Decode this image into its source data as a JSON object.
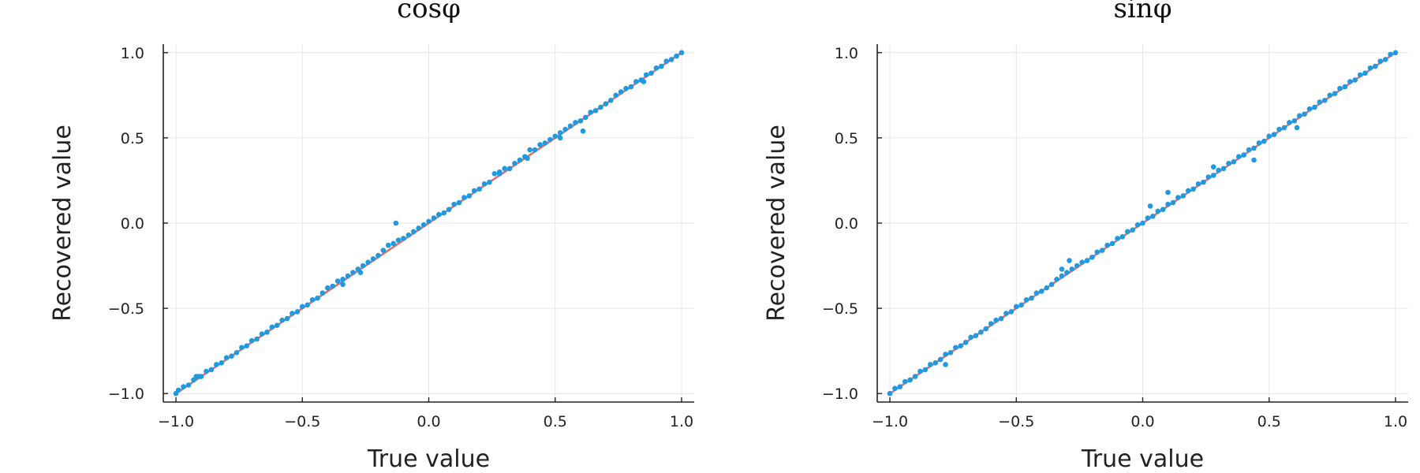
{
  "chart_data": [
    {
      "type": "scatter",
      "title": "cosφ",
      "xlabel": "True value",
      "ylabel": "Recovered value",
      "xlim": [
        -1.05,
        1.05
      ],
      "ylim": [
        -1.05,
        1.05
      ],
      "xticks": [
        -1.0,
        -0.5,
        0.0,
        0.5,
        1.0
      ],
      "yticks": [
        -1.0,
        -0.5,
        0.0,
        0.5,
        1.0
      ],
      "xtick_labels": [
        "−1.0",
        "−0.5",
        "0.0",
        "0.5",
        "1.0"
      ],
      "ytick_labels": [
        "−1.0",
        "−0.5",
        "0.0",
        "0.5",
        "1.0"
      ],
      "grid": true,
      "legend": "none",
      "colors": {
        "points": "#1f9ae0",
        "reference_line": "#e26f6f"
      },
      "reference_line": {
        "x": [
          -1.0,
          1.0
        ],
        "y": [
          -1.0,
          1.0
        ]
      },
      "series": [
        {
          "x": [
            -1.0,
            -0.99,
            -0.97,
            -0.95,
            -0.93,
            -0.91,
            -0.9,
            -0.88,
            -0.86,
            -0.84,
            -0.82,
            -0.8,
            -0.78,
            -0.76,
            -0.74,
            -0.72,
            -0.7,
            -0.68,
            -0.66,
            -0.64,
            -0.62,
            -0.6,
            -0.58,
            -0.56,
            -0.54,
            -0.52,
            -0.5,
            -0.48,
            -0.46,
            -0.44,
            -0.42,
            -0.4,
            -0.38,
            -0.36,
            -0.34,
            -0.32,
            -0.3,
            -0.28,
            -0.26,
            -0.24,
            -0.22,
            -0.2,
            -0.18,
            -0.16,
            -0.14,
            -0.13,
            -0.12,
            -0.1,
            -0.08,
            -0.06,
            -0.04,
            -0.02,
            0.0,
            0.02,
            0.04,
            0.06,
            0.08,
            0.1,
            0.12,
            0.14,
            0.16,
            0.18,
            0.2,
            0.22,
            0.24,
            0.26,
            0.28,
            0.3,
            0.32,
            0.34,
            0.36,
            0.38,
            0.4,
            0.42,
            0.44,
            0.46,
            0.48,
            0.5,
            0.52,
            0.54,
            0.56,
            0.58,
            0.6,
            0.62,
            0.64,
            0.66,
            0.68,
            0.7,
            0.72,
            0.74,
            0.76,
            0.78,
            0.8,
            0.82,
            0.84,
            0.86,
            0.88,
            0.9,
            0.92,
            0.94,
            0.96,
            0.98,
            1.0,
            -0.34,
            -0.27,
            0.61,
            0.28,
            0.39,
            0.52,
            -0.92,
            0.85
          ],
          "y": [
            -1.0,
            -0.98,
            -0.96,
            -0.95,
            -0.92,
            -0.9,
            -0.9,
            -0.87,
            -0.86,
            -0.83,
            -0.82,
            -0.79,
            -0.78,
            -0.76,
            -0.73,
            -0.72,
            -0.69,
            -0.68,
            -0.65,
            -0.64,
            -0.61,
            -0.6,
            -0.57,
            -0.56,
            -0.53,
            -0.52,
            -0.49,
            -0.48,
            -0.45,
            -0.44,
            -0.41,
            -0.38,
            -0.37,
            -0.34,
            -0.33,
            -0.31,
            -0.29,
            -0.27,
            -0.25,
            -0.23,
            -0.21,
            -0.19,
            -0.16,
            -0.13,
            -0.12,
            0.0,
            -0.1,
            -0.09,
            -0.07,
            -0.05,
            -0.03,
            -0.01,
            0.01,
            0.03,
            0.05,
            0.06,
            0.08,
            0.11,
            0.12,
            0.15,
            0.16,
            0.19,
            0.2,
            0.23,
            0.24,
            0.29,
            0.29,
            0.32,
            0.32,
            0.35,
            0.37,
            0.39,
            0.43,
            0.43,
            0.46,
            0.47,
            0.49,
            0.51,
            0.53,
            0.55,
            0.57,
            0.59,
            0.6,
            0.62,
            0.65,
            0.66,
            0.68,
            0.7,
            0.72,
            0.75,
            0.77,
            0.79,
            0.8,
            0.83,
            0.84,
            0.87,
            0.88,
            0.91,
            0.92,
            0.95,
            0.96,
            0.98,
            1.0,
            -0.36,
            -0.29,
            0.54,
            0.3,
            0.38,
            0.5,
            -0.9,
            0.83
          ]
        }
      ]
    },
    {
      "type": "scatter",
      "title": "sinφ",
      "xlabel": "True value",
      "ylabel": "Recovered value",
      "xlim": [
        -1.05,
        1.05
      ],
      "ylim": [
        -1.05,
        1.05
      ],
      "xticks": [
        -1.0,
        -0.5,
        0.0,
        0.5,
        1.0
      ],
      "yticks": [
        -1.0,
        -0.5,
        0.0,
        0.5,
        1.0
      ],
      "xtick_labels": [
        "−1.0",
        "−0.5",
        "0.0",
        "0.5",
        "1.0"
      ],
      "ytick_labels": [
        "−1.0",
        "−0.5",
        "0.0",
        "0.5",
        "1.0"
      ],
      "grid": true,
      "legend": "none",
      "colors": {
        "points": "#1f9ae0",
        "reference_line": "#e26f6f"
      },
      "reference_line": {
        "x": [
          -1.0,
          1.0
        ],
        "y": [
          -1.0,
          1.0
        ]
      },
      "series": [
        {
          "x": [
            -1.0,
            -0.98,
            -0.96,
            -0.94,
            -0.92,
            -0.9,
            -0.88,
            -0.86,
            -0.84,
            -0.82,
            -0.8,
            -0.78,
            -0.76,
            -0.74,
            -0.72,
            -0.7,
            -0.68,
            -0.66,
            -0.64,
            -0.62,
            -0.6,
            -0.58,
            -0.56,
            -0.54,
            -0.52,
            -0.5,
            -0.48,
            -0.46,
            -0.44,
            -0.42,
            -0.4,
            -0.38,
            -0.36,
            -0.34,
            -0.32,
            -0.3,
            -0.28,
            -0.26,
            -0.24,
            -0.22,
            -0.2,
            -0.18,
            -0.16,
            -0.14,
            -0.12,
            -0.1,
            -0.08,
            -0.06,
            -0.04,
            -0.02,
            0.0,
            0.02,
            0.04,
            0.06,
            0.08,
            0.1,
            0.12,
            0.14,
            0.16,
            0.18,
            0.2,
            0.22,
            0.24,
            0.26,
            0.28,
            0.3,
            0.32,
            0.34,
            0.36,
            0.38,
            0.4,
            0.42,
            0.44,
            0.46,
            0.48,
            0.5,
            0.52,
            0.54,
            0.56,
            0.58,
            0.6,
            0.62,
            0.64,
            0.66,
            0.68,
            0.7,
            0.72,
            0.74,
            0.76,
            0.78,
            0.8,
            0.82,
            0.84,
            0.86,
            0.88,
            0.9,
            0.92,
            0.94,
            0.96,
            0.98,
            1.0,
            -0.32,
            -0.29,
            0.1,
            0.03,
            0.61,
            0.44,
            0.28,
            -0.78
          ],
          "y": [
            -1.0,
            -0.97,
            -0.96,
            -0.93,
            -0.92,
            -0.9,
            -0.87,
            -0.86,
            -0.83,
            -0.82,
            -0.8,
            -0.77,
            -0.76,
            -0.73,
            -0.72,
            -0.7,
            -0.67,
            -0.66,
            -0.64,
            -0.62,
            -0.59,
            -0.57,
            -0.56,
            -0.53,
            -0.52,
            -0.49,
            -0.48,
            -0.45,
            -0.44,
            -0.41,
            -0.4,
            -0.38,
            -0.36,
            -0.33,
            -0.31,
            -0.29,
            -0.27,
            -0.25,
            -0.23,
            -0.22,
            -0.2,
            -0.17,
            -0.16,
            -0.13,
            -0.12,
            -0.09,
            -0.08,
            -0.05,
            -0.04,
            -0.01,
            0.0,
            0.03,
            0.04,
            0.07,
            0.08,
            0.11,
            0.12,
            0.15,
            0.16,
            0.19,
            0.2,
            0.23,
            0.24,
            0.27,
            0.28,
            0.31,
            0.32,
            0.35,
            0.36,
            0.39,
            0.4,
            0.43,
            0.44,
            0.47,
            0.48,
            0.51,
            0.52,
            0.55,
            0.56,
            0.59,
            0.6,
            0.63,
            0.64,
            0.67,
            0.68,
            0.71,
            0.72,
            0.75,
            0.76,
            0.79,
            0.8,
            0.83,
            0.84,
            0.87,
            0.88,
            0.91,
            0.92,
            0.95,
            0.96,
            0.99,
            1.0,
            -0.27,
            -0.22,
            0.18,
            0.1,
            0.56,
            0.37,
            0.33,
            -0.83
          ]
        }
      ]
    }
  ]
}
